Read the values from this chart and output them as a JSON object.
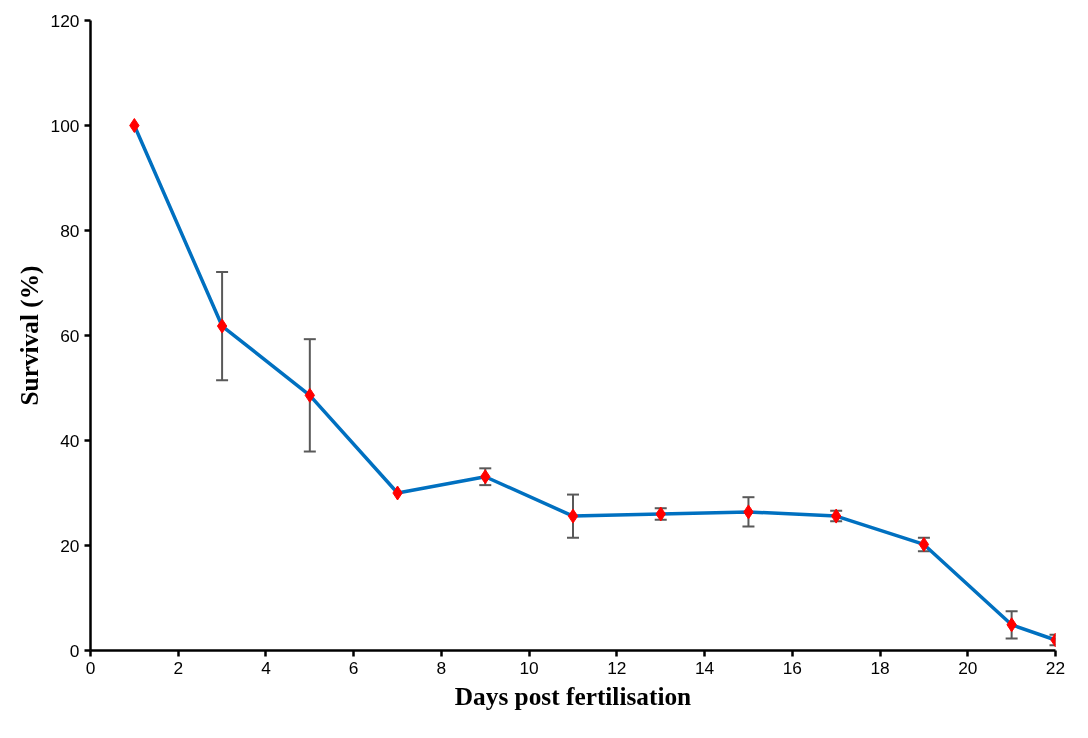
{
  "chart_data": {
    "type": "line",
    "xlabel": "Days post fertilisation",
    "ylabel": "Survival (%)",
    "x": [
      1,
      3,
      5,
      7,
      9,
      11,
      13,
      15,
      17,
      19,
      21,
      22
    ],
    "series": [
      {
        "color": "#0070c0",
        "colors": [
          "#ff0000",
          "#ff0000",
          "#ff0000",
          "#ff0000",
          "#ff0000",
          "#ff0000",
          "#ff0000",
          "#ff0000",
          "#ff0000",
          "#ff0000",
          "#ff0000",
          "#ff0000"
        ],
        "values": [
          100,
          61.8,
          48.6,
          30,
          33.1,
          25.6,
          26,
          26.4,
          25.6,
          20.2,
          4.9,
          2
        ],
        "errors": [
          null,
          10.3,
          10.7,
          null,
          1.6,
          4.1,
          1.1,
          2.8,
          1,
          1.3,
          2.6,
          1
        ]
      }
    ],
    "xlim": [
      0,
      22
    ],
    "xticks": [
      0,
      2,
      4,
      6,
      8,
      10,
      12,
      14,
      16,
      18,
      20,
      22
    ],
    "ylim": [
      0,
      120
    ],
    "yticks": [
      0,
      20,
      40,
      60,
      80,
      100,
      120
    ],
    "grid": false,
    "marker": "diamond",
    "line_style": "solid"
  }
}
